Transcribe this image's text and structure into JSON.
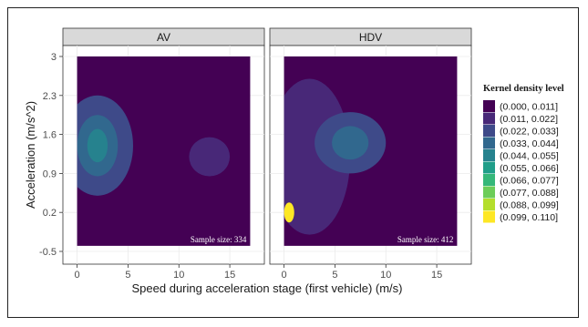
{
  "chart_data": {
    "type": "heatmap",
    "subtype": "faceted kernel density contour plot",
    "facets": [
      {
        "label": "AV",
        "sample_size_text": "Sample size: 334"
      },
      {
        "label": "HDV",
        "sample_size_text": "Sample size: 412"
      }
    ],
    "xlabel": "Speed during acceleration stage (first vehicle) (m/s)",
    "ylabel": "Acceleration (m/s^2)",
    "x_ticks": [
      0,
      5,
      10,
      15
    ],
    "x_tick_labels": [
      "0",
      "5",
      "10",
      "15"
    ],
    "xlim": [
      -0.5,
      17.5
    ],
    "y_ticks": [
      -0.5,
      0.2,
      0.9,
      1.6,
      2.3,
      3
    ],
    "y_tick_labels": [
      "-0.5",
      "0.2",
      "0.9",
      "1.6",
      "2.3",
      "3"
    ],
    "ylim": [
      -0.5,
      3
    ],
    "grid": true,
    "legend": {
      "title": "Kernel density level",
      "placement": "right",
      "entries": [
        {
          "label": "(0.000, 0.011]",
          "color": "#440154"
        },
        {
          "label": "(0.011, 0.022]",
          "color": "#482878"
        },
        {
          "label": "(0.022, 0.033]",
          "color": "#3E4A89"
        },
        {
          "label": "(0.033, 0.044]",
          "color": "#31688E"
        },
        {
          "label": "(0.044, 0.055]",
          "color": "#26828E"
        },
        {
          "label": "(0.055, 0.066]",
          "color": "#1F9E89"
        },
        {
          "label": "(0.066, 0.077]",
          "color": "#35B779"
        },
        {
          "label": "(0.077, 0.088]",
          "color": "#6DCD59"
        },
        {
          "label": "(0.088, 0.099]",
          "color": "#B4DE2C"
        },
        {
          "label": "(0.099, 0.110]",
          "color": "#FDE725"
        }
      ]
    },
    "density_regions": [
      {
        "facet": "AV",
        "level": 2,
        "center": [
          2,
          1.4
        ],
        "radius": [
          3.5,
          0.9
        ]
      },
      {
        "facet": "AV",
        "level": 3,
        "center": [
          2,
          1.4
        ],
        "radius": [
          2.0,
          0.55
        ]
      },
      {
        "facet": "AV",
        "level": 4,
        "center": [
          2,
          1.4
        ],
        "radius": [
          1.0,
          0.3
        ]
      },
      {
        "facet": "AV",
        "level": 1,
        "center": [
          13,
          1.2
        ],
        "radius": [
          2.0,
          0.35
        ]
      },
      {
        "facet": "HDV",
        "level": 1,
        "center": [
          2.5,
          1.2
        ],
        "radius": [
          4.0,
          1.4
        ]
      },
      {
        "facet": "HDV",
        "level": 2,
        "center": [
          6.5,
          1.45
        ],
        "radius": [
          3.5,
          0.55
        ]
      },
      {
        "facet": "HDV",
        "level": 3,
        "center": [
          6.5,
          1.45
        ],
        "radius": [
          1.8,
          0.3
        ]
      },
      {
        "facet": "HDV",
        "level": 9,
        "center": [
          0.5,
          0.2
        ],
        "radius": [
          0.5,
          0.18
        ]
      }
    ]
  }
}
